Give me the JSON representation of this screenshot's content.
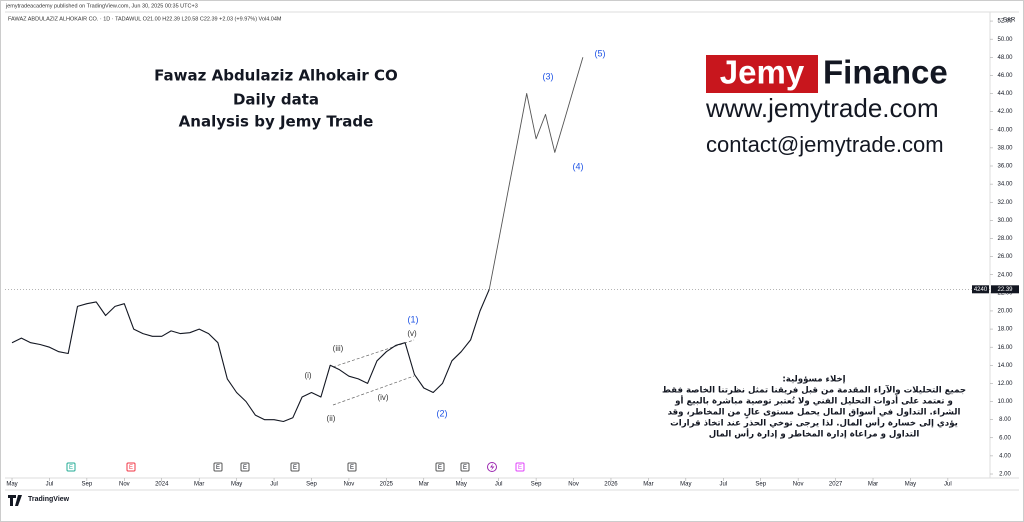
{
  "chart_data": {
    "type": "line",
    "header": "jemytradeacademy published on TradingView.com, Jun 30, 2025 00:35 UTC+3",
    "symbol_line": "FAWAZ ABDULAZIZ ALHOKAIR CO. · 1D · TADAWUL   O21.00  H22.39  L20.58  C22.39  +2.03 (+9.97%)   Vol4.04M",
    "currency": "SAR",
    "overlay_title": [
      "Fawaz Abdulaziz Alhokair CO",
      "Daily  data",
      "Analysis by Jemy Trade"
    ],
    "brand": {
      "jemy": "Jemy",
      "finance": "Finance",
      "website": "www.jemytrade.com",
      "contact": "contact@jemytrade.com"
    },
    "disclaimer": [
      "إخلاء مسؤولية:",
      "جميع التحليلات والآراء المقدمة من قبل فريقنا تمثل نظرتنا الخاصة فقط",
      "و تعتمد على أدوات التحليل الفني ولا تُعتبر توصية مباشرة بالبيع أو",
      "الشراء. التداول في أسواق المال يحمل مستوى عالٍ من المخاطر، وقد",
      "يؤدي إلى خسارة رأس المال. لذا يرجى توخي الحذر عند اتخاذ قرارات",
      "التداول و مراعاة إدارة المخاطر و إدارة رأس المال"
    ],
    "wave_labels": [
      "(1)",
      "(v)",
      "(iii)",
      "(i)",
      "(iv)",
      "(ii)",
      "(2)",
      "(3)",
      "(4)",
      "(5)"
    ],
    "events": [
      "E",
      "E",
      "E",
      "E",
      "E",
      "E",
      "E",
      "E",
      "E"
    ],
    "countdown": "4240",
    "last_price": 22.39,
    "footer": "TradingView",
    "series": [
      {
        "color": "#131722",
        "values": [
          16.5,
          17,
          16.5,
          16.3,
          16.0,
          15.5,
          15.3,
          20.5,
          20.8,
          21.0,
          19.5,
          20.5,
          20.8,
          18.0,
          17.5,
          17.2,
          17.2,
          17.8,
          17.5,
          17.6,
          18.0,
          17.5,
          16.5,
          12.5,
          11.0,
          10.0,
          8.5,
          8.0,
          8.0,
          7.8,
          8.2,
          10.5,
          11.0,
          10.5,
          14.0,
          13.5,
          12.8,
          12.5,
          12.0,
          14.5,
          15.5,
          16.2,
          16.5,
          13.0,
          11.5,
          11.0,
          12.0,
          14.5,
          15.5,
          16.8,
          20.0,
          22.39,
          null,
          null,
          null,
          null,
          null,
          null,
          null,
          null,
          null,
          null,
          null
        ]
      },
      {
        "color": "#555555",
        "values": [
          null,
          null,
          null,
          null,
          null,
          null,
          null,
          null,
          null,
          null,
          null,
          null,
          null,
          null,
          null,
          null,
          null,
          null,
          null,
          null,
          null,
          null,
          null,
          null,
          null,
          null,
          null,
          null,
          null,
          null,
          null,
          null,
          null,
          null,
          null,
          null,
          null,
          null,
          null,
          null,
          null,
          null,
          null,
          null,
          null,
          null,
          null,
          null,
          null,
          null,
          null,
          22.4,
          27.8,
          33.2,
          38.6,
          44.0,
          39.0,
          41.7,
          37.5,
          41.0,
          44.5,
          48.0
        ]
      }
    ],
    "xlim": [
      -0.75,
      104.5
    ],
    "xticks": [
      {
        "value": 0,
        "label": "May"
      },
      {
        "value": 4,
        "label": "Jul"
      },
      {
        "value": 8,
        "label": "Sep"
      },
      {
        "value": 12,
        "label": "Nov"
      },
      {
        "value": 16,
        "label": "2024"
      },
      {
        "value": 20,
        "label": "Mar"
      },
      {
        "value": 24,
        "label": "May"
      },
      {
        "value": 28,
        "label": "Jul"
      },
      {
        "value": 32,
        "label": "Sep"
      },
      {
        "value": 36,
        "label": "Nov"
      },
      {
        "value": 40,
        "label": "2025"
      },
      {
        "value": 44,
        "label": "Mar"
      },
      {
        "value": 48,
        "label": "May"
      },
      {
        "value": 52,
        "label": "Jul"
      },
      {
        "value": 56,
        "label": "Sep"
      },
      {
        "value": 60,
        "label": "Nov"
      },
      {
        "value": 64,
        "label": "2026"
      },
      {
        "value": 68,
        "label": "Mar"
      },
      {
        "value": 72,
        "label": "May"
      },
      {
        "value": 76,
        "label": "Jul"
      },
      {
        "value": 80,
        "label": "Sep"
      },
      {
        "value": 84,
        "label": "Nov"
      },
      {
        "value": 88,
        "label": "2027"
      },
      {
        "value": 92,
        "label": "Mar"
      },
      {
        "value": 96,
        "label": "May"
      },
      {
        "value": 100,
        "label": "Jul"
      }
    ],
    "ylim": [
      1.56,
      53.0
    ],
    "yticks": [
      {
        "value": 2,
        "label": "2.00"
      },
      {
        "value": 4,
        "label": "4.00"
      },
      {
        "value": 6,
        "label": "6.00"
      },
      {
        "value": 8,
        "label": "8.00"
      },
      {
        "value": 10,
        "label": "10.00"
      },
      {
        "value": 12,
        "label": "12.00"
      },
      {
        "value": 14,
        "label": "14.00"
      },
      {
        "value": 16,
        "label": "16.00"
      },
      {
        "value": 18,
        "label": "18.00"
      },
      {
        "value": 20,
        "label": "20.00"
      },
      {
        "value": 22,
        "label": "22.00"
      },
      {
        "value": 24,
        "label": "24.00"
      },
      {
        "value": 26,
        "label": "26.00"
      },
      {
        "value": 28,
        "label": "28.00"
      },
      {
        "value": 30,
        "label": "30.00"
      },
      {
        "value": 32,
        "label": "32.00"
      },
      {
        "value": 34,
        "label": "34.00"
      },
      {
        "value": 36,
        "label": "36.00"
      },
      {
        "value": 38,
        "label": "38.00"
      },
      {
        "value": 40,
        "label": "40.00"
      },
      {
        "value": 42,
        "label": "42.00"
      },
      {
        "value": 44,
        "label": "44.00"
      },
      {
        "value": 46,
        "label": "46.00"
      },
      {
        "value": 48,
        "label": "48.00"
      },
      {
        "value": 50,
        "label": "50.00"
      },
      {
        "value": 52,
        "label": "52.00"
      }
    ]
  }
}
